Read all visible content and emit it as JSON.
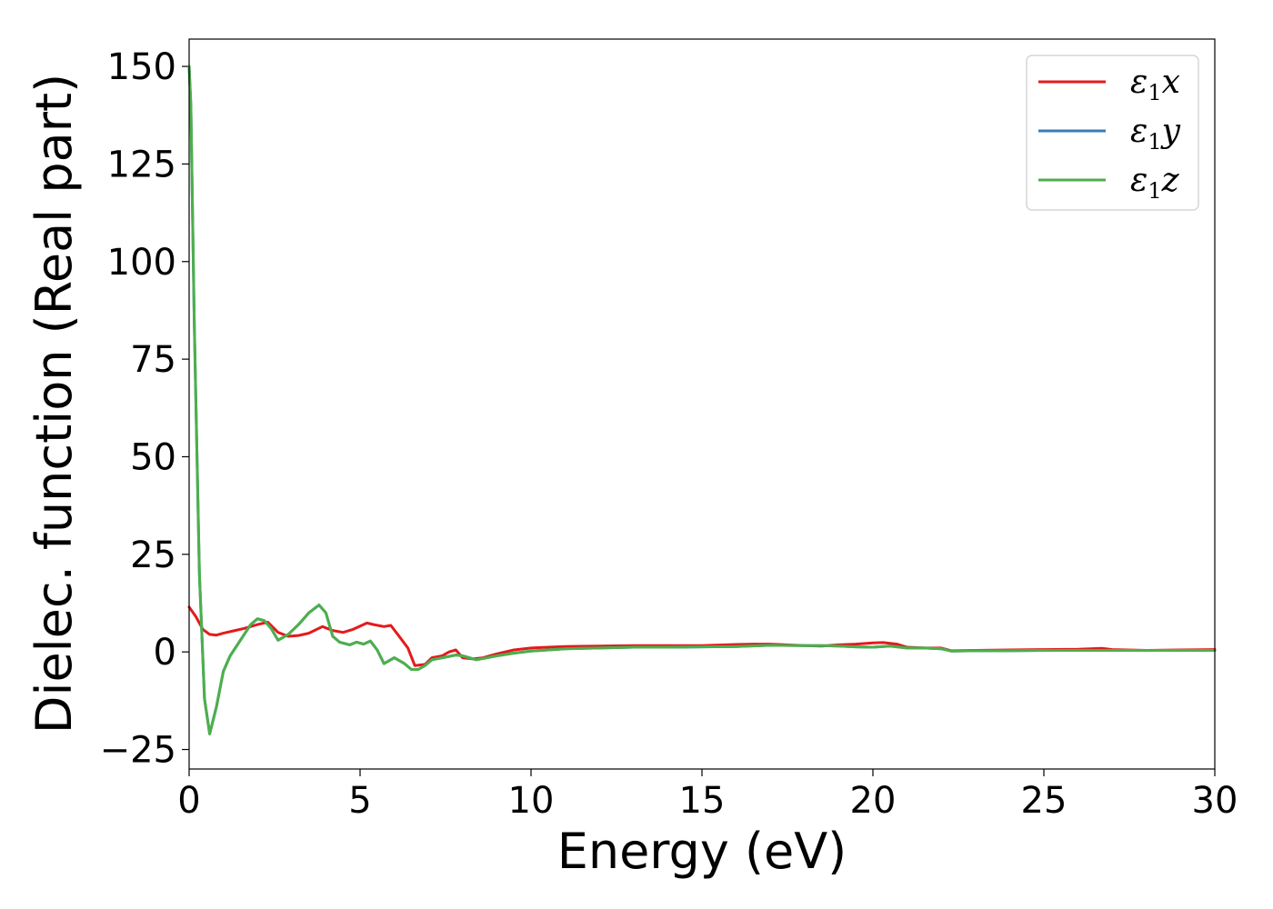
{
  "chart_data": {
    "type": "line",
    "xlabel": "Energy (eV)",
    "ylabel": "Dielec. function (Real part)",
    "xlim": [
      0,
      30
    ],
    "ylim": [
      -30,
      157
    ],
    "xticks": [
      0,
      5,
      10,
      15,
      20,
      25,
      30
    ],
    "yticks": [
      -25,
      0,
      25,
      50,
      75,
      100,
      125,
      150
    ],
    "xtick_labels": [
      "0",
      "5",
      "10",
      "15",
      "20",
      "25",
      "30"
    ],
    "ytick_labels": [
      "−25",
      "0",
      "25",
      "50",
      "75",
      "100",
      "125",
      "150"
    ],
    "grid": false,
    "legend": "top-right",
    "series": [
      {
        "name": "ε",
        "sub": "1",
        "suffix": "x",
        "color": "#e41a1c",
        "x": [
          0,
          0.2,
          0.4,
          0.6,
          0.8,
          1.0,
          1.3,
          1.6,
          2.0,
          2.3,
          2.6,
          2.9,
          3.2,
          3.5,
          3.9,
          4.2,
          4.5,
          4.8,
          5.2,
          5.4,
          5.7,
          5.9,
          6.1,
          6.4,
          6.6,
          6.9,
          7.1,
          7.4,
          7.6,
          7.8,
          8.0,
          8.3,
          8.6,
          9.0,
          9.5,
          10.0,
          10.5,
          11.0,
          12.0,
          13.0,
          14.0,
          15.0,
          16.0,
          16.5,
          17.0,
          18.0,
          18.5,
          19.0,
          19.5,
          20.0,
          20.3,
          20.7,
          21.0,
          21.5,
          22.0,
          22.3,
          23.0,
          24.0,
          25.0,
          26.0,
          26.7,
          27.0,
          28.0,
          29.0,
          30.0
        ],
        "y": [
          11.5,
          9.0,
          5.8,
          4.5,
          4.3,
          4.8,
          5.4,
          6.0,
          7.0,
          7.6,
          5.0,
          4.0,
          4.2,
          4.8,
          6.5,
          5.5,
          5.0,
          5.8,
          7.4,
          7.0,
          6.5,
          6.8,
          4.5,
          1.0,
          -3.5,
          -3.2,
          -1.5,
          -1.0,
          0.0,
          0.5,
          -1.5,
          -1.8,
          -1.5,
          -0.5,
          0.5,
          1.0,
          1.2,
          1.4,
          1.5,
          1.6,
          1.6,
          1.6,
          1.9,
          2.0,
          2.0,
          1.6,
          1.5,
          1.8,
          2.0,
          2.3,
          2.4,
          2.0,
          1.2,
          1.0,
          1.0,
          0.3,
          0.4,
          0.5,
          0.6,
          0.7,
          0.9,
          0.6,
          0.4,
          0.5,
          0.6
        ]
      },
      {
        "name": "ε",
        "sub": "1",
        "suffix": "y",
        "color": "#377eb8",
        "x": [
          0,
          0.05,
          0.15,
          0.3,
          0.45,
          0.6,
          0.8,
          1.0,
          1.2,
          1.5,
          1.8,
          2.0,
          2.2,
          2.4,
          2.6,
          2.9,
          3.2,
          3.5,
          3.8,
          4.0,
          4.2,
          4.4,
          4.7,
          4.9,
          5.1,
          5.3,
          5.5,
          5.7,
          6.0,
          6.3,
          6.5,
          6.7,
          6.9,
          7.1,
          7.4,
          7.8,
          8.0,
          8.4,
          9.0,
          9.5,
          10.0,
          11.0,
          12.0,
          13.0,
          14.0,
          15.0,
          16.0,
          17.0,
          18.0,
          18.5,
          19.0,
          19.5,
          20.0,
          20.5,
          21.0,
          21.5,
          22.0,
          22.3,
          23.0,
          24.0,
          25.0,
          26.0,
          27.0,
          28.0,
          29.0,
          30.0
        ],
        "y": [
          150,
          140,
          85,
          20,
          -12,
          -21,
          -14,
          -5,
          -1,
          3,
          7,
          8.5,
          8.0,
          6.0,
          3.0,
          4.5,
          7.0,
          10.0,
          12.0,
          10.0,
          4.0,
          2.5,
          1.8,
          2.5,
          2.0,
          2.8,
          0.5,
          -3.0,
          -1.5,
          -3.0,
          -4.5,
          -4.5,
          -3.5,
          -2.0,
          -1.5,
          -0.8,
          -1.0,
          -2.0,
          -1.0,
          -0.3,
          0.2,
          0.8,
          1.0,
          1.2,
          1.2,
          1.3,
          1.4,
          1.7,
          1.6,
          1.6,
          1.5,
          1.3,
          1.2,
          1.5,
          1.0,
          1.0,
          0.8,
          0.2,
          0.3,
          0.3,
          0.4,
          0.4,
          0.4,
          0.4,
          0.4,
          0.4
        ]
      },
      {
        "name": "ε",
        "sub": "1",
        "suffix": "z",
        "color": "#4daf4a",
        "x": [
          0,
          0.05,
          0.15,
          0.3,
          0.45,
          0.6,
          0.8,
          1.0,
          1.2,
          1.5,
          1.8,
          2.0,
          2.2,
          2.4,
          2.6,
          2.9,
          3.2,
          3.5,
          3.8,
          4.0,
          4.2,
          4.4,
          4.7,
          4.9,
          5.1,
          5.3,
          5.5,
          5.7,
          6.0,
          6.3,
          6.5,
          6.7,
          6.9,
          7.1,
          7.4,
          7.8,
          8.0,
          8.4,
          9.0,
          9.5,
          10.0,
          11.0,
          12.0,
          13.0,
          14.0,
          15.0,
          16.0,
          17.0,
          18.0,
          18.5,
          19.0,
          19.5,
          20.0,
          20.5,
          21.0,
          21.5,
          22.0,
          22.3,
          23.0,
          24.0,
          25.0,
          26.0,
          27.0,
          28.0,
          29.0,
          30.0
        ],
        "y": [
          150,
          140,
          85,
          20,
          -12,
          -21,
          -14,
          -5,
          -1,
          3,
          7,
          8.5,
          8.0,
          6.0,
          3.0,
          4.5,
          7.0,
          10.0,
          12.0,
          10.0,
          4.0,
          2.5,
          1.8,
          2.5,
          2.0,
          2.8,
          0.5,
          -3.0,
          -1.5,
          -3.0,
          -4.5,
          -4.5,
          -3.5,
          -2.0,
          -1.5,
          -0.8,
          -1.0,
          -2.0,
          -1.0,
          -0.3,
          0.2,
          0.8,
          1.0,
          1.2,
          1.2,
          1.3,
          1.4,
          1.7,
          1.6,
          1.6,
          1.5,
          1.3,
          1.2,
          1.5,
          1.0,
          1.0,
          0.8,
          0.2,
          0.3,
          0.3,
          0.4,
          0.4,
          0.4,
          0.4,
          0.4,
          0.4
        ]
      }
    ]
  }
}
